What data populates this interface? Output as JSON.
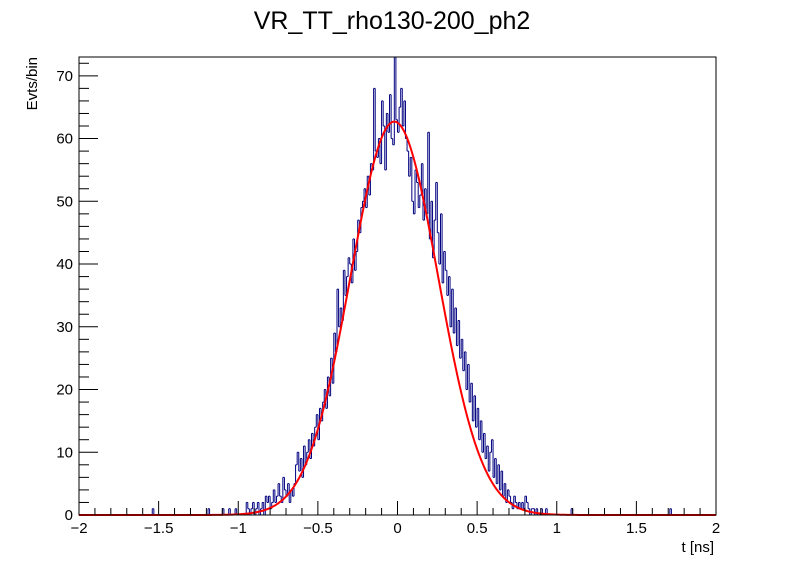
{
  "chart_data": {
    "type": "histogram",
    "title": "VR_TT_rho130-200_ph2",
    "xlabel": "t [ns]",
    "ylabel": "Evts/bin",
    "xlim": [
      -2,
      2
    ],
    "ylim": [
      0,
      73
    ],
    "x_ticks": [
      -2,
      -1.5,
      -1,
      -0.5,
      0,
      0.5,
      1,
      1.5,
      2
    ],
    "x_tick_labels": [
      "−2",
      "−1.5",
      "−1",
      "−0.5",
      "0",
      "0.5",
      "1",
      "1.5",
      "2"
    ],
    "y_ticks": [
      0,
      10,
      20,
      30,
      40,
      50,
      60,
      70
    ],
    "y_tick_labels": [
      "0",
      "10",
      "20",
      "30",
      "40",
      "50",
      "60",
      "70"
    ],
    "grid": false,
    "bin_width": 0.01,
    "histogram": {
      "name": "data",
      "color": "#000080",
      "nonzero_bins": [
        [
          -1.54,
          1
        ],
        [
          -1.19,
          1
        ],
        [
          -1.1,
          1
        ],
        [
          -1.06,
          1
        ],
        [
          -1.02,
          1
        ],
        [
          -0.95,
          2
        ],
        [
          -0.94,
          1
        ],
        [
          -0.92,
          1
        ],
        [
          -0.91,
          2
        ],
        [
          -0.89,
          1
        ],
        [
          -0.88,
          2
        ],
        [
          -0.86,
          1
        ],
        [
          -0.85,
          2
        ],
        [
          -0.83,
          3
        ],
        [
          -0.82,
          2
        ],
        [
          -0.81,
          3
        ],
        [
          -0.8,
          1
        ],
        [
          -0.79,
          2
        ],
        [
          -0.78,
          4
        ],
        [
          -0.77,
          2
        ],
        [
          -0.76,
          3
        ],
        [
          -0.75,
          5
        ],
        [
          -0.74,
          3
        ],
        [
          -0.73,
          2
        ],
        [
          -0.72,
          6
        ],
        [
          -0.71,
          4
        ],
        [
          -0.7,
          3
        ],
        [
          -0.69,
          5
        ],
        [
          -0.68,
          2
        ],
        [
          -0.67,
          4
        ],
        [
          -0.66,
          3
        ],
        [
          -0.65,
          5
        ],
        [
          -0.64,
          8
        ],
        [
          -0.63,
          10
        ],
        [
          -0.62,
          7
        ],
        [
          -0.61,
          9
        ],
        [
          -0.6,
          6
        ],
        [
          -0.59,
          11
        ],
        [
          -0.58,
          8
        ],
        [
          -0.57,
          10
        ],
        [
          -0.56,
          12
        ],
        [
          -0.55,
          9
        ],
        [
          -0.54,
          13
        ],
        [
          -0.53,
          11
        ],
        [
          -0.52,
          14
        ],
        [
          -0.51,
          16
        ],
        [
          -0.5,
          12
        ],
        [
          -0.49,
          17
        ],
        [
          -0.48,
          15
        ],
        [
          -0.47,
          18
        ],
        [
          -0.46,
          20
        ],
        [
          -0.45,
          17
        ],
        [
          -0.44,
          22
        ],
        [
          -0.43,
          19
        ],
        [
          -0.42,
          25
        ],
        [
          -0.41,
          21
        ],
        [
          -0.4,
          29
        ],
        [
          -0.39,
          26
        ],
        [
          -0.38,
          36
        ],
        [
          -0.37,
          30
        ],
        [
          -0.36,
          33
        ],
        [
          -0.35,
          31
        ],
        [
          -0.34,
          39
        ],
        [
          -0.33,
          35
        ],
        [
          -0.32,
          38
        ],
        [
          -0.31,
          41
        ],
        [
          -0.3,
          40
        ],
        [
          -0.29,
          37
        ],
        [
          -0.28,
          44
        ],
        [
          -0.27,
          39
        ],
        [
          -0.26,
          42
        ],
        [
          -0.25,
          47
        ],
        [
          -0.24,
          45
        ],
        [
          -0.23,
          49
        ],
        [
          -0.22,
          50
        ],
        [
          -0.21,
          52
        ],
        [
          -0.2,
          49
        ],
        [
          -0.19,
          54
        ],
        [
          -0.18,
          51
        ],
        [
          -0.17,
          56
        ],
        [
          -0.16,
          55
        ],
        [
          -0.15,
          68
        ],
        [
          -0.14,
          58
        ],
        [
          -0.13,
          57
        ],
        [
          -0.12,
          60
        ],
        [
          -0.11,
          56
        ],
        [
          -0.1,
          66
        ],
        [
          -0.09,
          62
        ],
        [
          -0.08,
          55
        ],
        [
          -0.07,
          64
        ],
        [
          -0.06,
          61
        ],
        [
          -0.05,
          67
        ],
        [
          -0.04,
          60
        ],
        [
          -0.03,
          59
        ],
        [
          -0.02,
          73
        ],
        [
          -0.01,
          63
        ],
        [
          0.0,
          61
        ],
        [
          0.01,
          65
        ],
        [
          0.02,
          68
        ],
        [
          0.03,
          62
        ],
        [
          0.04,
          66
        ],
        [
          0.05,
          60
        ],
        [
          0.06,
          58
        ],
        [
          0.07,
          54
        ],
        [
          0.08,
          57
        ],
        [
          0.09,
          50
        ],
        [
          0.1,
          48
        ],
        [
          0.11,
          55
        ],
        [
          0.12,
          53
        ],
        [
          0.13,
          49
        ],
        [
          0.14,
          51
        ],
        [
          0.15,
          56
        ],
        [
          0.16,
          47
        ],
        [
          0.17,
          52
        ],
        [
          0.18,
          48
        ],
        [
          0.19,
          61
        ],
        [
          0.2,
          44
        ],
        [
          0.21,
          50
        ],
        [
          0.22,
          41
        ],
        [
          0.23,
          47
        ],
        [
          0.24,
          53
        ],
        [
          0.25,
          45
        ],
        [
          0.26,
          40
        ],
        [
          0.27,
          48
        ],
        [
          0.28,
          37
        ],
        [
          0.29,
          42
        ],
        [
          0.3,
          39
        ],
        [
          0.31,
          35
        ],
        [
          0.32,
          38
        ],
        [
          0.33,
          30
        ],
        [
          0.34,
          36
        ],
        [
          0.35,
          29
        ],
        [
          0.36,
          33
        ],
        [
          0.37,
          27
        ],
        [
          0.38,
          31
        ],
        [
          0.39,
          25
        ],
        [
          0.4,
          28
        ],
        [
          0.41,
          23
        ],
        [
          0.42,
          26
        ],
        [
          0.43,
          20
        ],
        [
          0.44,
          24
        ],
        [
          0.45,
          18
        ],
        [
          0.46,
          21
        ],
        [
          0.47,
          15
        ],
        [
          0.48,
          19
        ],
        [
          0.49,
          14
        ],
        [
          0.5,
          17
        ],
        [
          0.51,
          12
        ],
        [
          0.52,
          15
        ],
        [
          0.53,
          10
        ],
        [
          0.54,
          13
        ],
        [
          0.55,
          9
        ],
        [
          0.56,
          11
        ],
        [
          0.57,
          7
        ],
        [
          0.58,
          10
        ],
        [
          0.59,
          12
        ],
        [
          0.6,
          6
        ],
        [
          0.61,
          9
        ],
        [
          0.62,
          5
        ],
        [
          0.63,
          8
        ],
        [
          0.64,
          4
        ],
        [
          0.65,
          7
        ],
        [
          0.66,
          3
        ],
        [
          0.67,
          5
        ],
        [
          0.68,
          2
        ],
        [
          0.69,
          4
        ],
        [
          0.7,
          3
        ],
        [
          0.71,
          2
        ],
        [
          0.72,
          1
        ],
        [
          0.73,
          3
        ],
        [
          0.74,
          2
        ],
        [
          0.75,
          1
        ],
        [
          0.76,
          2
        ],
        [
          0.77,
          1
        ],
        [
          0.78,
          2
        ],
        [
          0.79,
          1
        ],
        [
          0.8,
          3
        ],
        [
          0.81,
          2
        ],
        [
          0.82,
          1
        ],
        [
          0.84,
          1
        ],
        [
          0.85,
          1
        ],
        [
          0.87,
          1
        ],
        [
          0.9,
          1
        ],
        [
          0.93,
          1
        ],
        [
          1.09,
          1
        ],
        [
          1.71,
          1
        ]
      ]
    },
    "fit": {
      "name": "gaussian fit",
      "type": "gaussian",
      "color": "#ff0000",
      "amplitude": 62.7,
      "mean": -0.02,
      "sigma": 0.275
    }
  }
}
